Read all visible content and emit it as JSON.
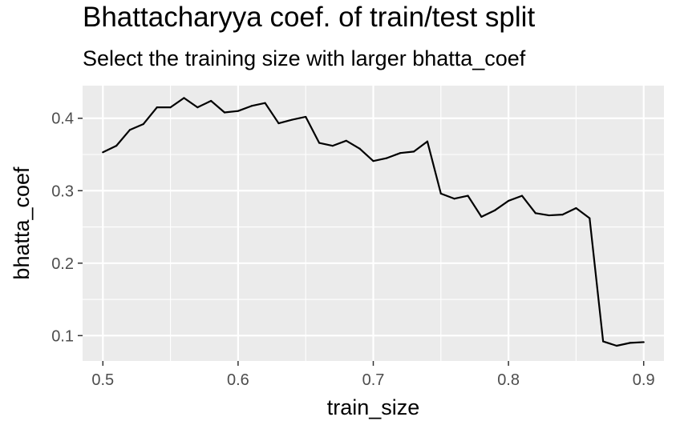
{
  "chart_data": {
    "type": "line",
    "title": "Bhattacharyya coef. of train/test split",
    "subtitle": "Select the training size with larger bhatta_coef",
    "xlabel": "train_size",
    "ylabel": "bhatta_coef",
    "xlim": [
      0.485,
      0.915
    ],
    "ylim": [
      0.065,
      0.445
    ],
    "xticks": [
      0.5,
      0.6,
      0.7,
      0.8,
      0.9
    ],
    "xtick_labels": [
      "0.5",
      "0.6",
      "0.7",
      "0.8",
      "0.9"
    ],
    "yticks": [
      0.1,
      0.2,
      0.3,
      0.4
    ],
    "ytick_labels": [
      "0.1",
      "0.2",
      "0.3",
      "0.4"
    ],
    "grid": true,
    "background": "#ebebeb",
    "line_color": "#000000",
    "series": [
      {
        "x": [
          0.5,
          0.51,
          0.52,
          0.53,
          0.54,
          0.55,
          0.56,
          0.57,
          0.58,
          0.59,
          0.6,
          0.61,
          0.62,
          0.63,
          0.64,
          0.65,
          0.66,
          0.67,
          0.68,
          0.69,
          0.7,
          0.71,
          0.72,
          0.73,
          0.74,
          0.75,
          0.76,
          0.77,
          0.78,
          0.79,
          0.8,
          0.81,
          0.82,
          0.83,
          0.84,
          0.85,
          0.86,
          0.87,
          0.88,
          0.89,
          0.9
        ],
        "y": [
          0.353,
          0.362,
          0.384,
          0.392,
          0.415,
          0.415,
          0.428,
          0.415,
          0.424,
          0.408,
          0.41,
          0.417,
          0.421,
          0.393,
          0.398,
          0.402,
          0.366,
          0.362,
          0.369,
          0.358,
          0.341,
          0.345,
          0.352,
          0.354,
          0.368,
          0.296,
          0.289,
          0.293,
          0.264,
          0.273,
          0.286,
          0.293,
          0.269,
          0.266,
          0.267,
          0.276,
          0.262,
          0.092,
          0.086,
          0.09,
          0.091
        ]
      }
    ]
  }
}
